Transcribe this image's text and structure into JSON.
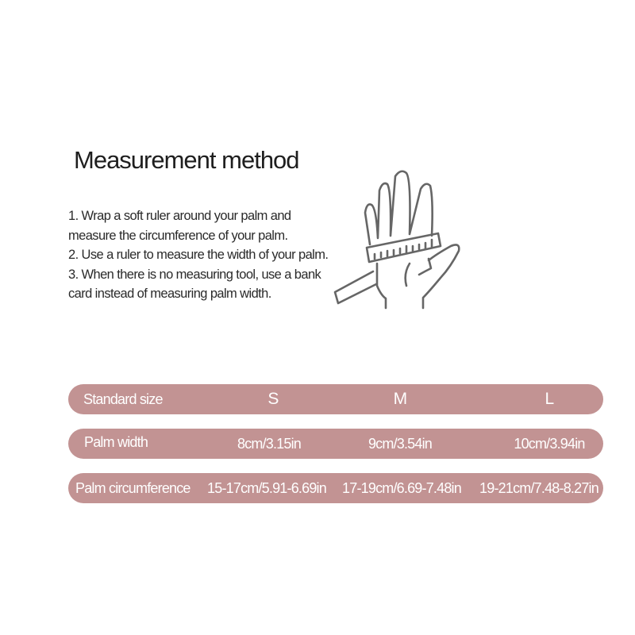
{
  "title": "Measurement method",
  "steps": [
    "1. Wrap a soft ruler around your palm and measure the circumference of your palm.",
    "2. Use a ruler to measure the width of your palm.",
    "3. When there is no measuring tool, use a bank card instead of measuring palm width."
  ],
  "illustration": {
    "icon": "hand-with-ruler-icon",
    "stroke_color": "#666666"
  },
  "table": {
    "color": "#c29393",
    "header": {
      "label": "Standard size",
      "sizes": [
        "S",
        "M",
        "L"
      ]
    },
    "rows": [
      {
        "label": "Palm width",
        "values": [
          "8cm/3.15in",
          "9cm/3.54in",
          "10cm/3.94in"
        ]
      },
      {
        "label": "Palm circumference",
        "values": [
          "15-17cm/5.91-6.69in",
          "17-19cm/6.69-7.48in",
          "19-21cm/7.48-8.27in"
        ]
      }
    ]
  }
}
